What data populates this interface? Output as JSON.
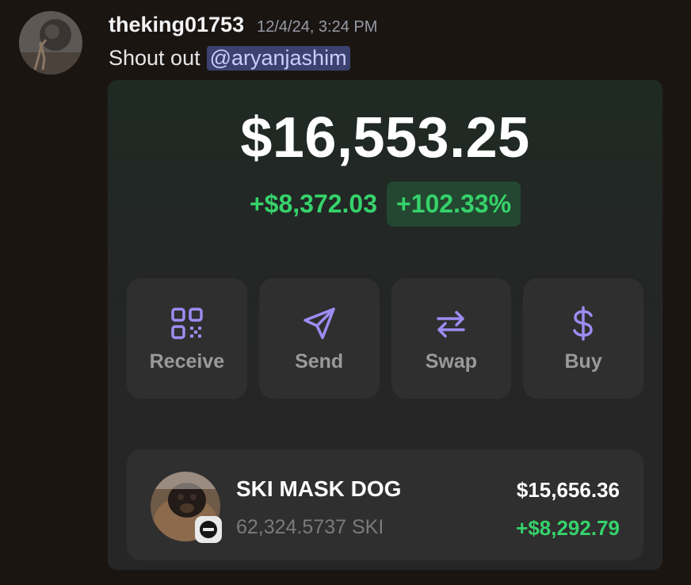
{
  "message": {
    "username": "theking01753",
    "timestamp": "12/4/24, 3:24 PM",
    "text": "Shout out",
    "mention": "@aryanjashim",
    "avatar_icon": "user-avatar"
  },
  "wallet": {
    "balance": "$16,553.25",
    "change_amount": "+$8,372.03",
    "change_percent": "+102.33%",
    "accent_color": "#36d26b",
    "actions": [
      {
        "label": "Receive",
        "icon": "qr-code-icon"
      },
      {
        "label": "Send",
        "icon": "paper-plane-icon"
      },
      {
        "label": "Swap",
        "icon": "swap-arrows-icon"
      },
      {
        "label": "Buy",
        "icon": "dollar-icon"
      }
    ],
    "action_icon_color": "#9d8cf2",
    "token": {
      "name": "SKI MASK DOG",
      "quantity": "62,324.5737 SKI",
      "value": "$15,656.36",
      "change": "+$8,292.79",
      "chain_icon": "base-chain-icon"
    }
  }
}
